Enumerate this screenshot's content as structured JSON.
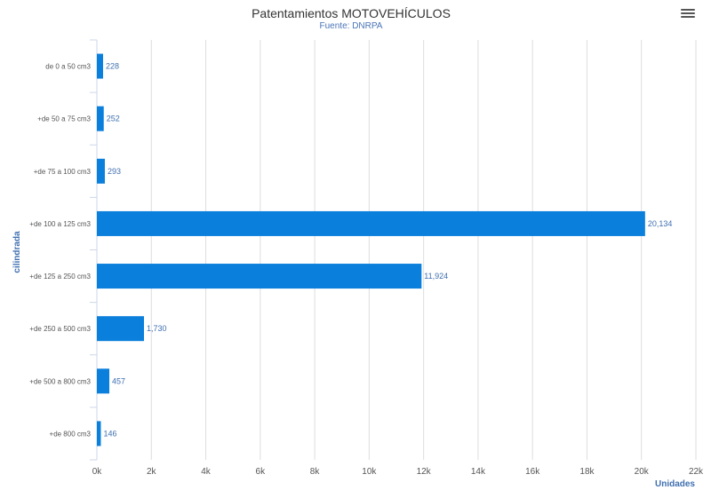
{
  "chart_data": {
    "type": "bar",
    "orientation": "horizontal",
    "title": "Patentamientos MOTOVEHÍCULOS",
    "subtitle": "Fuente: DNRPA",
    "categories": [
      "de 0 a 50 cm3",
      "+de 50 a 75 cm3",
      "+de 75 a 100 cm3",
      "+de 100 a 125 cm3",
      "+de 125 a 250 cm3",
      "+de 250 a 500 cm3",
      "+de 500 a 800 cm3",
      "+de 800 cm3"
    ],
    "values": [
      228,
      252,
      293,
      20134,
      11924,
      1730,
      457,
      146
    ],
    "data_labels": [
      "228",
      "252",
      "293",
      "20,134",
      "11,924",
      "1,730",
      "457",
      "146"
    ],
    "xlabel": "Unidades",
    "ylabel": "cilindrada",
    "xlim": [
      0,
      22000
    ],
    "ticks": [
      0,
      2000,
      4000,
      6000,
      8000,
      10000,
      12000,
      14000,
      16000,
      18000,
      20000,
      22000
    ],
    "tick_labels": [
      "0k",
      "2k",
      "4k",
      "6k",
      "8k",
      "10k",
      "12k",
      "14k",
      "16k",
      "18k",
      "20k",
      "22k"
    ],
    "grid": true,
    "legend": "none",
    "bar_color": "#0a7fdc"
  },
  "menu_icon": "hamburger-menu-icon"
}
